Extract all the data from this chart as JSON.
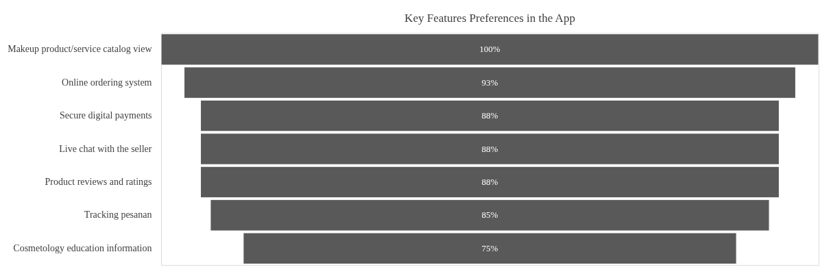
{
  "chart_data": {
    "type": "other",
    "title": "Key Features Preferences in the App",
    "categories": [
      "Makeup product/service catalog view",
      "Online ordering system",
      "Secure digital payments",
      "Live chat with the seller",
      "Product reviews and ratings",
      "Tracking pesanan",
      "Cosmetology education information"
    ],
    "values": [
      100,
      93,
      88,
      88,
      88,
      85,
      75
    ],
    "value_labels": [
      "100%",
      "93%",
      "88%",
      "88%",
      "88%",
      "85%",
      "75%"
    ],
    "color": "#595959"
  }
}
